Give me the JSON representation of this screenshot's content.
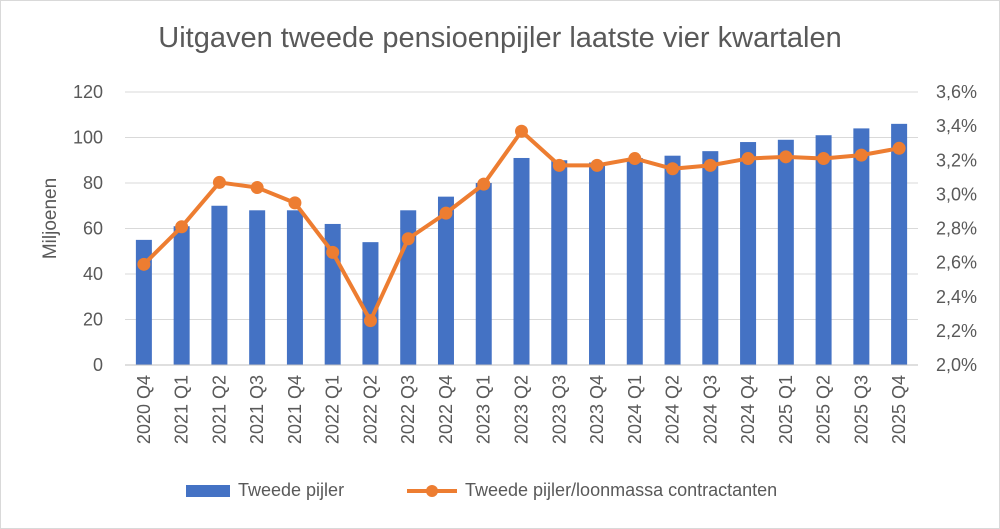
{
  "chart_data": {
    "type": "bar+line",
    "title": "Uitgaven tweede pensioenpijler laatste vier kwartalen",
    "ylabel": "Miljoenen",
    "y2label": "",
    "categories": [
      "2020 Q4",
      "2021 Q1",
      "2021 Q2",
      "2021 Q3",
      "2021 Q4",
      "2022 Q1",
      "2022 Q2",
      "2022 Q3",
      "2022 Q4",
      "2023 Q1",
      "2023 Q2",
      "2023 Q3",
      "2023 Q4",
      "2024 Q1",
      "2024 Q2",
      "2024 Q3",
      "2024 Q4",
      "2025 Q1",
      "2025 Q2",
      "2025 Q3",
      "2025 Q4"
    ],
    "ylim": [
      0,
      120
    ],
    "y2lim": [
      2.0,
      3.6
    ],
    "yticks": [
      "0",
      "20",
      "40",
      "60",
      "80",
      "100",
      "120"
    ],
    "y2ticks": [
      "2,0%",
      "2,2%",
      "2,4%",
      "2,6%",
      "2,8%",
      "3,0%",
      "3,2%",
      "3,4%",
      "3,6%"
    ],
    "series": [
      {
        "name": "Tweede pijler",
        "type": "bar",
        "axis": "left",
        "color": "#4472c4",
        "values": [
          55,
          61,
          70,
          68,
          68,
          62,
          54,
          68,
          74,
          80,
          91,
          90,
          89,
          91,
          92,
          94,
          98,
          99,
          101,
          104,
          106
        ]
      },
      {
        "name": "Tweede pijler/loonmassa contractanten",
        "type": "line",
        "axis": "right",
        "color": "#ed7d31",
        "values": [
          2.59,
          2.81,
          3.07,
          3.04,
          2.95,
          2.66,
          2.26,
          2.74,
          2.89,
          3.06,
          3.37,
          3.17,
          3.17,
          3.21,
          3.15,
          3.17,
          3.21,
          3.22,
          3.21,
          3.23,
          3.27
        ]
      }
    ],
    "grid": true,
    "legend": "bottom"
  }
}
